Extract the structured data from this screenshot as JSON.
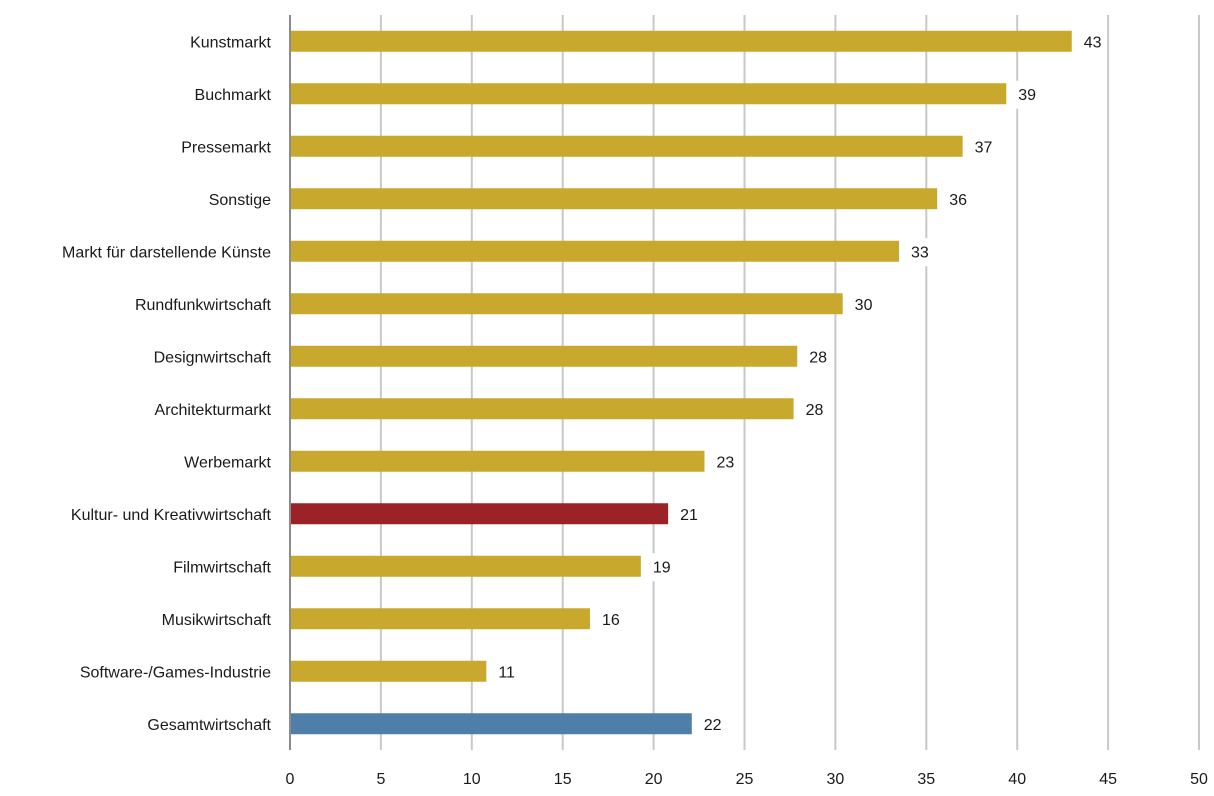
{
  "chart_data": {
    "type": "bar",
    "orientation": "horizontal",
    "title": "",
    "xlabel": "",
    "ylabel": "",
    "xlim": [
      0,
      50
    ],
    "x_ticks": [
      0,
      5,
      10,
      15,
      20,
      25,
      30,
      35,
      40,
      45,
      50
    ],
    "grid": "vertical",
    "legend": "none",
    "categories": [
      "Kunstmarkt",
      "Buchmarkt",
      "Pressemarkt",
      "Sonstige",
      "Markt für darstellende Künste",
      "Rundfunkwirtschaft",
      "Designwirtschaft",
      "Architekturmarkt",
      "Werbemarkt",
      "Kultur- und Kreativwirtschaft",
      "Filmwirtschaft",
      "Musikwirtschaft",
      "Software-/Games-Industrie",
      "Gesamtwirtschaft"
    ],
    "values": [
      43,
      39.4,
      37,
      35.6,
      33.5,
      30.4,
      27.9,
      27.7,
      22.8,
      20.8,
      19.3,
      16.5,
      10.8,
      22.1
    ],
    "data_labels": [
      "43",
      "39",
      "37",
      "36",
      "33",
      "30",
      "28",
      "28",
      "23",
      "21",
      "19",
      "16",
      "11",
      "22"
    ],
    "colors": {
      "default": "#C9A82E",
      "highlight": "#9B2226",
      "total": "#4F7EA8",
      "grid": "#C8C8C8",
      "axis": "#8C8C8C"
    },
    "highlight_categories": [
      "Kultur- und Kreativwirtschaft"
    ],
    "total_categories": [
      "Gesamtwirtschaft"
    ]
  }
}
